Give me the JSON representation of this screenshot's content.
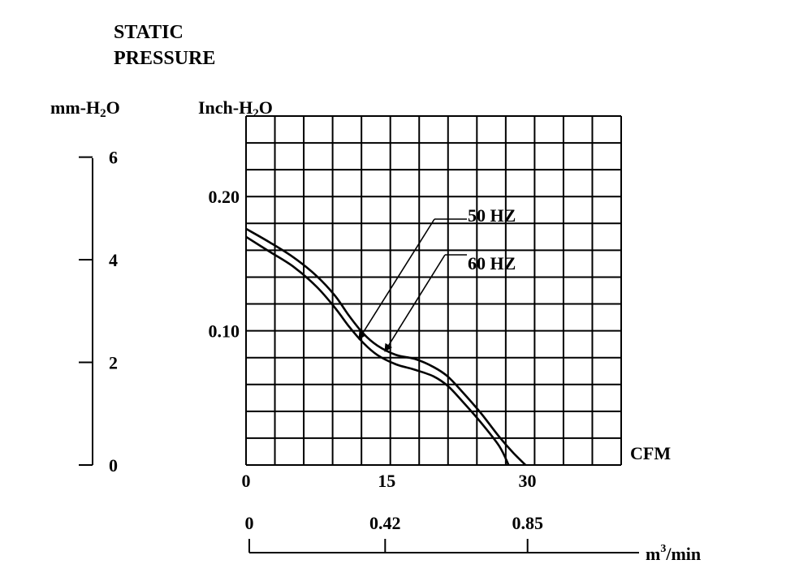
{
  "chart_data": {
    "type": "line",
    "title": "STATIC PRESSURE",
    "title_lines": [
      "STATIC",
      "PRESSURE"
    ],
    "left_axis": {
      "label": "mm-H2O",
      "label_main": "mm-H",
      "label_sub": "2",
      "label_tail": "O",
      "ticks": [
        "0",
        "2",
        "4",
        "6"
      ],
      "ylim": [
        0,
        6.8
      ]
    },
    "ylabel": "Inch-H2O",
    "ylabel_main": "Inch-H",
    "ylabel_sub": "2",
    "ylabel_tail": "O",
    "yticks": [
      "0.10",
      "0.20"
    ],
    "ylim": [
      0,
      0.26
    ],
    "xlabel": "CFM",
    "xticks": [
      "0",
      "15",
      "30"
    ],
    "xlim": [
      0,
      40
    ],
    "bottom_axis": {
      "label": "m³/min",
      "label_main": "m",
      "label_sup": "3",
      "label_tail": "/min",
      "ticks": [
        "0",
        "0.42",
        "0.85"
      ]
    },
    "grid": true,
    "series": [
      {
        "name": "50 HZ",
        "x": [
          0,
          2.5,
          5,
          7.5,
          9.5,
          11,
          12.5,
          14,
          16,
          18,
          20,
          21.5,
          23,
          25,
          27,
          28.5,
          29.8
        ],
        "y": [
          0.176,
          0.166,
          0.155,
          0.141,
          0.126,
          0.111,
          0.098,
          0.089,
          0.082,
          0.079,
          0.073,
          0.066,
          0.055,
          0.039,
          0.021,
          0.009,
          0.0
        ]
      },
      {
        "name": "60 HZ",
        "x": [
          0,
          2.5,
          5,
          7.5,
          9.5,
          11,
          12.5,
          14,
          16,
          18,
          20,
          21.5,
          23,
          25,
          27,
          28
        ],
        "y": [
          0.17,
          0.159,
          0.148,
          0.133,
          0.117,
          0.103,
          0.091,
          0.082,
          0.075,
          0.071,
          0.066,
          0.059,
          0.048,
          0.032,
          0.014,
          0.0
        ]
      }
    ],
    "annotations": [
      {
        "text": "50 HZ",
        "points_to": {
          "x": 12,
          "y": 0.096
        }
      },
      {
        "text": "60 HZ",
        "points_to": {
          "x": 14.3,
          "y": 0.083
        }
      }
    ]
  }
}
